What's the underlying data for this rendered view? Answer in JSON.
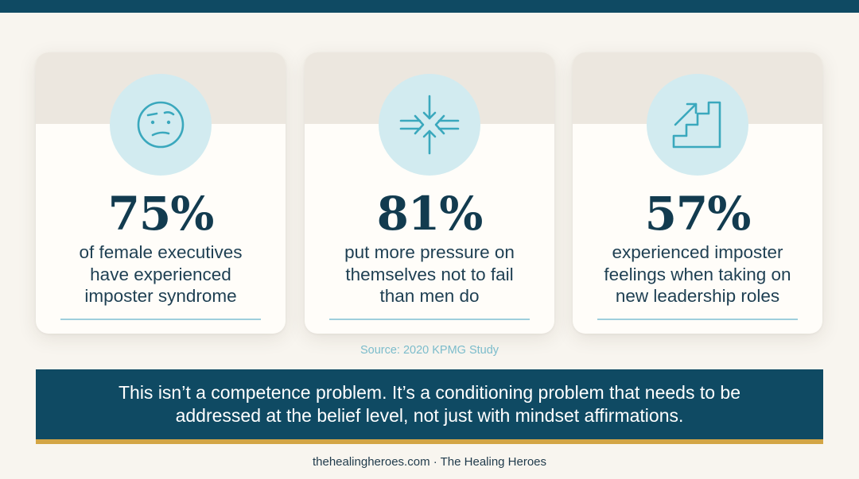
{
  "colors": {
    "navy": "#0f4a63",
    "stat_text": "#123b4f",
    "icon_bg": "#d2ebf0",
    "icon_stroke": "#3aa8bd",
    "accent_gold": "#d3a545",
    "source_text": "#7cbccb"
  },
  "cards": [
    {
      "icon": "confused-face-icon",
      "stat": "75%",
      "lines": [
        "of female executives",
        "have experienced",
        "imposter syndrome"
      ]
    },
    {
      "icon": "converging-arrows-icon",
      "stat": "81%",
      "lines": [
        "put more pressure on",
        "themselves not to fail",
        "than men do"
      ]
    },
    {
      "icon": "stairs-arrow-icon",
      "stat": "57%",
      "lines": [
        "experienced imposter",
        "feelings when taking on",
        "new leadership roles"
      ]
    }
  ],
  "source": "Source: 2020 KPMG Study",
  "banner": {
    "line1": "This isn’t a competence problem. It’s a conditioning problem that needs to be",
    "line2": "addressed at the belief level, not just with mindset affirmations."
  },
  "footer": "thehealingheroes.com · The Healing Heroes"
}
